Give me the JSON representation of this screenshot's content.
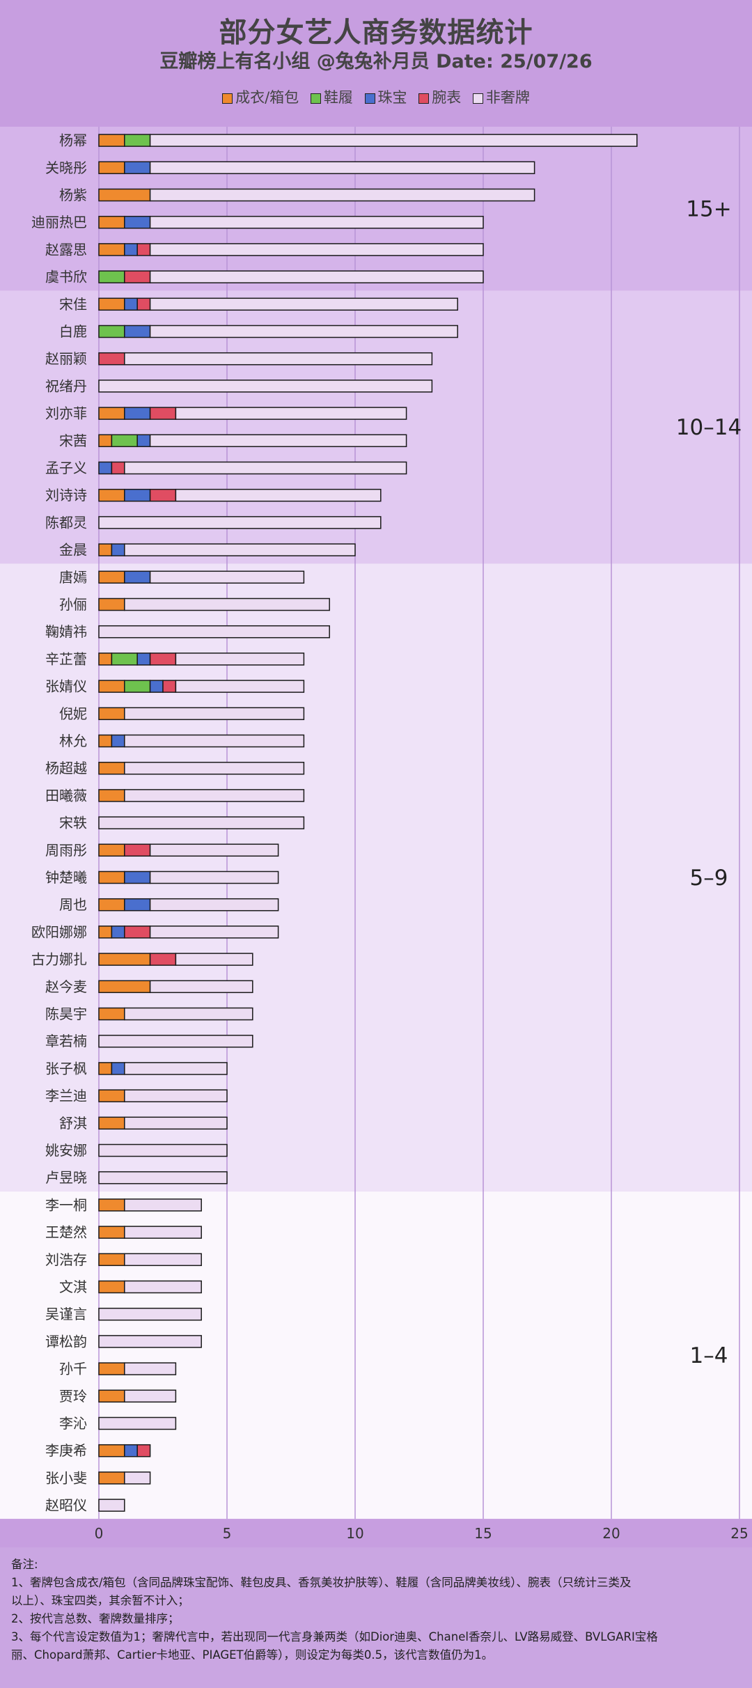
{
  "header": {
    "title": "部分女艺人商务数据统计",
    "subtitle": "豆瓣榜上有名小组 @兔兔补月员  Date: 25/07/26"
  },
  "legend": [
    {
      "name": "成衣/箱包",
      "color": "#ef8a2e"
    },
    {
      "name": "鞋履",
      "color": "#6ec24e"
    },
    {
      "name": "珠宝",
      "color": "#4a6fce"
    },
    {
      "name": "腕表",
      "color": "#e04d62"
    },
    {
      "name": "非奢牌",
      "color": "#ecdcf2"
    }
  ],
  "chart_data": {
    "type": "bar",
    "orientation": "horizontal",
    "stacked": true,
    "xlim": [
      0,
      25
    ],
    "xticks": [
      "0",
      "5",
      "10",
      "15",
      "20",
      "25"
    ],
    "grid": true,
    "legend_position": "top",
    "groups": [
      {
        "label": "15+",
        "color": "#d5b4ea",
        "from": 0,
        "to": 5
      },
      {
        "label": "10–14",
        "color": "#e1c9f1",
        "from": 6,
        "to": 15
      },
      {
        "label": "5–9",
        "color": "#efe3f8",
        "from": 16,
        "to": 38
      },
      {
        "label": "1–4",
        "color": "#fbf7fd",
        "from": 39,
        "to": 50
      }
    ],
    "categories": [
      "杨幂",
      "关晓彤",
      "杨紫",
      "迪丽热巴",
      "赵露思",
      "虞书欣",
      "宋佳",
      "白鹿",
      "赵丽颖",
      "祝绪丹",
      "刘亦菲",
      "宋茜",
      "孟子义",
      "刘诗诗",
      "陈都灵",
      "金晨",
      "唐嫣",
      "孙俪",
      "鞠婧祎",
      "辛芷蕾",
      "张婧仪",
      "倪妮",
      "林允",
      "杨超越",
      "田曦薇",
      "宋轶",
      "周雨彤",
      "钟楚曦",
      "周也",
      "欧阳娜娜",
      "古力娜扎",
      "赵今麦",
      "陈昊宇",
      "章若楠",
      "张子枫",
      "李兰迪",
      "舒淇",
      "姚安娜",
      "卢昱晓",
      "李一桐",
      "王楚然",
      "刘浩存",
      "文淇",
      "吴谨言",
      "谭松韵",
      "孙千",
      "贾玲",
      "李沁",
      "李庚希",
      "张小斐",
      "赵昭仪"
    ],
    "series": [
      {
        "name": "成衣/箱包",
        "values": [
          1,
          1,
          2,
          1,
          1,
          0,
          1,
          0,
          0,
          0,
          1,
          0.5,
          0,
          1,
          0,
          0.5,
          1,
          1,
          0,
          0.5,
          1,
          1,
          0.5,
          1,
          1,
          0,
          1,
          1,
          1,
          0.5,
          2,
          2,
          1,
          0,
          0.5,
          1,
          1,
          0,
          0,
          1,
          1,
          1,
          1,
          0,
          0,
          1,
          1,
          0,
          1,
          1,
          0
        ]
      },
      {
        "name": "鞋履",
        "values": [
          1,
          0,
          0,
          0,
          0,
          1,
          0,
          1,
          0,
          0,
          0,
          1,
          0,
          0,
          0,
          0,
          0,
          0,
          0,
          1,
          1,
          0,
          0,
          0,
          0,
          0,
          0,
          0,
          0,
          0,
          0,
          0,
          0,
          0,
          0,
          0,
          0,
          0,
          0,
          0,
          0,
          0,
          0,
          0,
          0,
          0,
          0,
          0,
          0,
          0,
          0
        ]
      },
      {
        "name": "珠宝",
        "values": [
          0,
          1,
          0,
          1,
          0.5,
          0,
          0.5,
          1,
          0,
          0,
          1,
          0.5,
          0.5,
          1,
          0,
          0.5,
          1,
          0,
          0,
          0.5,
          0.5,
          0,
          0.5,
          0,
          0,
          0,
          0,
          1,
          1,
          0.5,
          0,
          0,
          0,
          0,
          0.5,
          0,
          0,
          0,
          0,
          0,
          0,
          0,
          0,
          0,
          0,
          0,
          0,
          0,
          0.5,
          0,
          0
        ]
      },
      {
        "name": "腕表",
        "values": [
          0,
          0,
          0,
          0,
          0.5,
          1,
          0.5,
          0,
          1,
          0,
          1,
          0,
          0.5,
          1,
          0,
          0,
          0,
          0,
          0,
          1,
          0.5,
          0,
          0,
          0,
          0,
          0,
          1,
          0,
          0,
          1,
          1,
          0,
          0,
          0,
          0,
          0,
          0,
          0,
          0,
          0,
          0,
          0,
          0,
          0,
          0,
          0,
          0,
          0,
          0.5,
          0,
          0
        ]
      },
      {
        "name": "非奢牌",
        "values": [
          19,
          15,
          15,
          13,
          13,
          13,
          12,
          12,
          12,
          13,
          9,
          10,
          11,
          8,
          11,
          9,
          6,
          8,
          9,
          5,
          5,
          7,
          7,
          7,
          7,
          8,
          5,
          5,
          5,
          5,
          3,
          4,
          5,
          6,
          4,
          4,
          4,
          5,
          5,
          3,
          3,
          3,
          3,
          4,
          4,
          2,
          2,
          3,
          0,
          1,
          1
        ]
      }
    ]
  },
  "footnote": {
    "lines": [
      "备注:",
      "1、奢牌包含成衣/箱包（含同品牌珠宝配饰、鞋包皮具、香氛美妆护肤等）、鞋履（含同品牌美妆线）、腕表（只统计三类及",
      "以上）、珠宝四类，其余暂不计入；",
      "2、按代言总数、奢牌数量排序；",
      "3、每个代言设定数值为1；奢牌代言中，若出现同一代言身兼两类（如Dior迪奥、Chanel香奈儿、LV路易威登、BVLGARI宝格",
      "丽、Chopard萧邦、Cartier卡地亚、PIAGET伯爵等），则设定为每类0.5，该代言数值仍为1。"
    ]
  }
}
